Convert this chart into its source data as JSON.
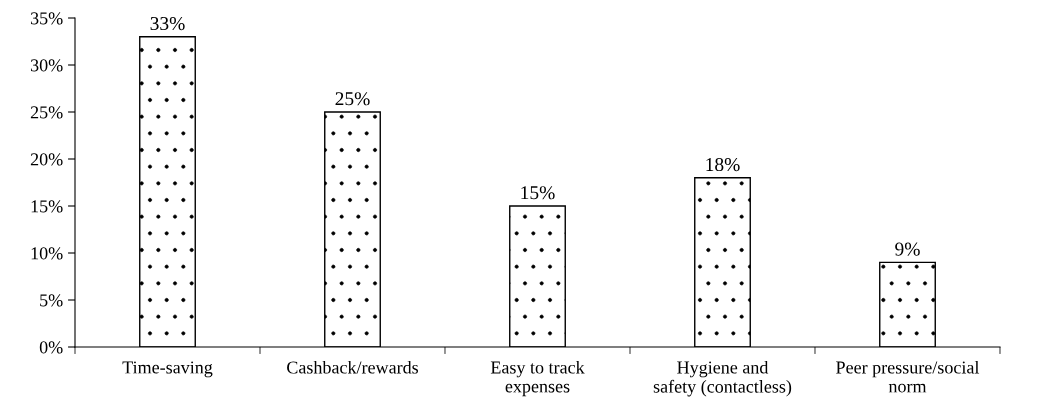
{
  "chart_data": {
    "type": "bar",
    "categories": [
      "Time-saving",
      "Cashback/rewards",
      "Easy to track\nexpenses",
      "Hygiene and\nsafety (contactless)",
      "Peer pressure/social\nnorm"
    ],
    "values": [
      33,
      25,
      15,
      18,
      9
    ],
    "value_labels": [
      "33%",
      "25%",
      "15%",
      "18%",
      "9%"
    ],
    "color": "#000000",
    "ylim": [
      0,
      35
    ],
    "yticks": [
      {
        "value": 0,
        "label": "0%"
      },
      {
        "value": 5,
        "label": "5%"
      },
      {
        "value": 10,
        "label": "10%"
      },
      {
        "value": 15,
        "label": "15%"
      },
      {
        "value": 20,
        "label": "20%"
      },
      {
        "value": 25,
        "label": "25%"
      },
      {
        "value": 30,
        "label": "30%"
      },
      {
        "value": 35,
        "label": "35%"
      }
    ],
    "grid": false,
    "legend": false
  }
}
